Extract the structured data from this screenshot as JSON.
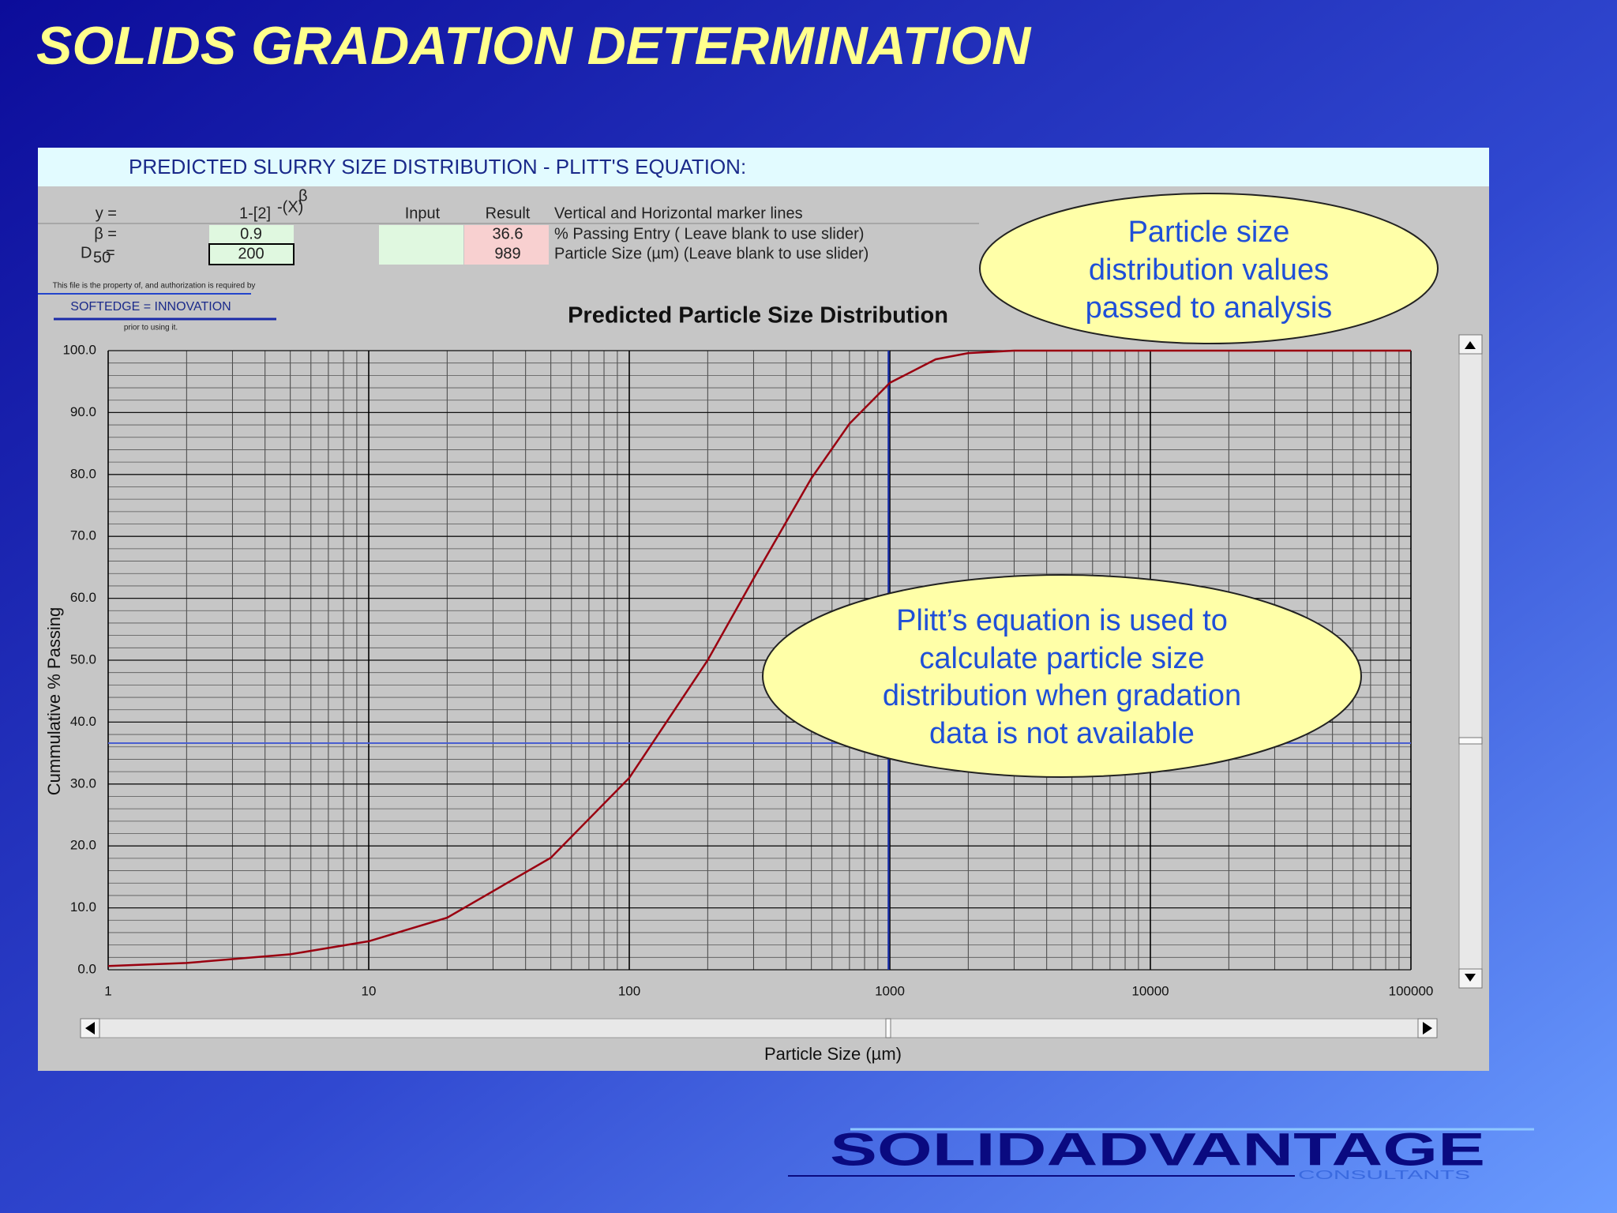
{
  "header": {
    "title": "SOLIDS GRADATION DETERMINATION"
  },
  "panel": {
    "title": "PREDICTED SLURRY SIZE DISTRIBUTION - PLITT'S EQUATION:"
  },
  "form": {
    "y_label": "y =",
    "formula": "1-[2]",
    "formula_exp": "-(X)",
    "formula_power": "β",
    "headers": [
      "Input",
      "Result",
      "Vertical and Horizontal marker lines"
    ],
    "rows": [
      {
        "label": "β =",
        "value": 0.9,
        "result": 36.6,
        "description": "% Passing Entry ( Leave blank to use slider)"
      },
      {
        "label": "D",
        "label_sub": "50",
        "label_end": " =",
        "value": 200,
        "result": 989,
        "description": "Particle Size (µm) (Leave blank to use slider)"
      }
    ]
  },
  "softedge": {
    "notice": "This file is the property of, and authorization is required by",
    "name": "SOFTEDGE = INNOVATION",
    "notice_end": "prior to using it."
  },
  "callouts": [
    {
      "lines": [
        "Particle size",
        "distribution values",
        "passed to analysis"
      ]
    },
    {
      "lines": [
        "Plitt’s equation is used to",
        "calculate particle size",
        "distribution when gradation",
        "data is not available"
      ]
    }
  ],
  "logo": {
    "name": "SOLIDADVANTAGE",
    "sub": "CONSULTANTS"
  },
  "chart_data": {
    "type": "line",
    "title": "Predicted Particle Size Distribution",
    "x_label": "Particle Size (µm)",
    "y_label": "Cummulative % Passing",
    "xscale": "log",
    "grid": true,
    "minor_grid": true,
    "x": [
      1,
      2,
      5,
      10,
      20,
      50,
      100,
      200,
      300,
      500,
      700,
      1000,
      1500,
      2000,
      3000,
      100000
    ],
    "series": [
      {
        "name": "Predicted",
        "color": "#9a0010",
        "values": [
          0.6,
          1.1,
          2.5,
          4.6,
          8.4,
          18.1,
          31.0,
          50.0,
          63.2,
          79.4,
          88.2,
          94.8,
          98.6,
          99.6,
          100.0,
          100.0
        ]
      }
    ],
    "xlim": [
      1,
      100000
    ],
    "ylim": [
      0,
      100
    ],
    "xticks": [
      1,
      10,
      100,
      1000,
      10000,
      100000
    ],
    "yticks": [
      {
        "value": 0,
        "label": "0.0"
      },
      {
        "value": 10,
        "label": "10.0"
      },
      {
        "value": 20,
        "label": "20.0"
      },
      {
        "value": 30,
        "label": "30.0"
      },
      {
        "value": 40,
        "label": "40.0"
      },
      {
        "value": 50,
        "label": "50.0"
      },
      {
        "value": 60,
        "label": "60.0"
      },
      {
        "value": 70,
        "label": "70.0"
      },
      {
        "value": 80,
        "label": "80.0"
      },
      {
        "value": 90,
        "label": "90.0"
      },
      {
        "value": 100,
        "label": "100.0"
      }
    ],
    "marker_colors": {
      "vertical": "#1a2fa8",
      "horizontal": "#4a5fd0"
    }
  }
}
